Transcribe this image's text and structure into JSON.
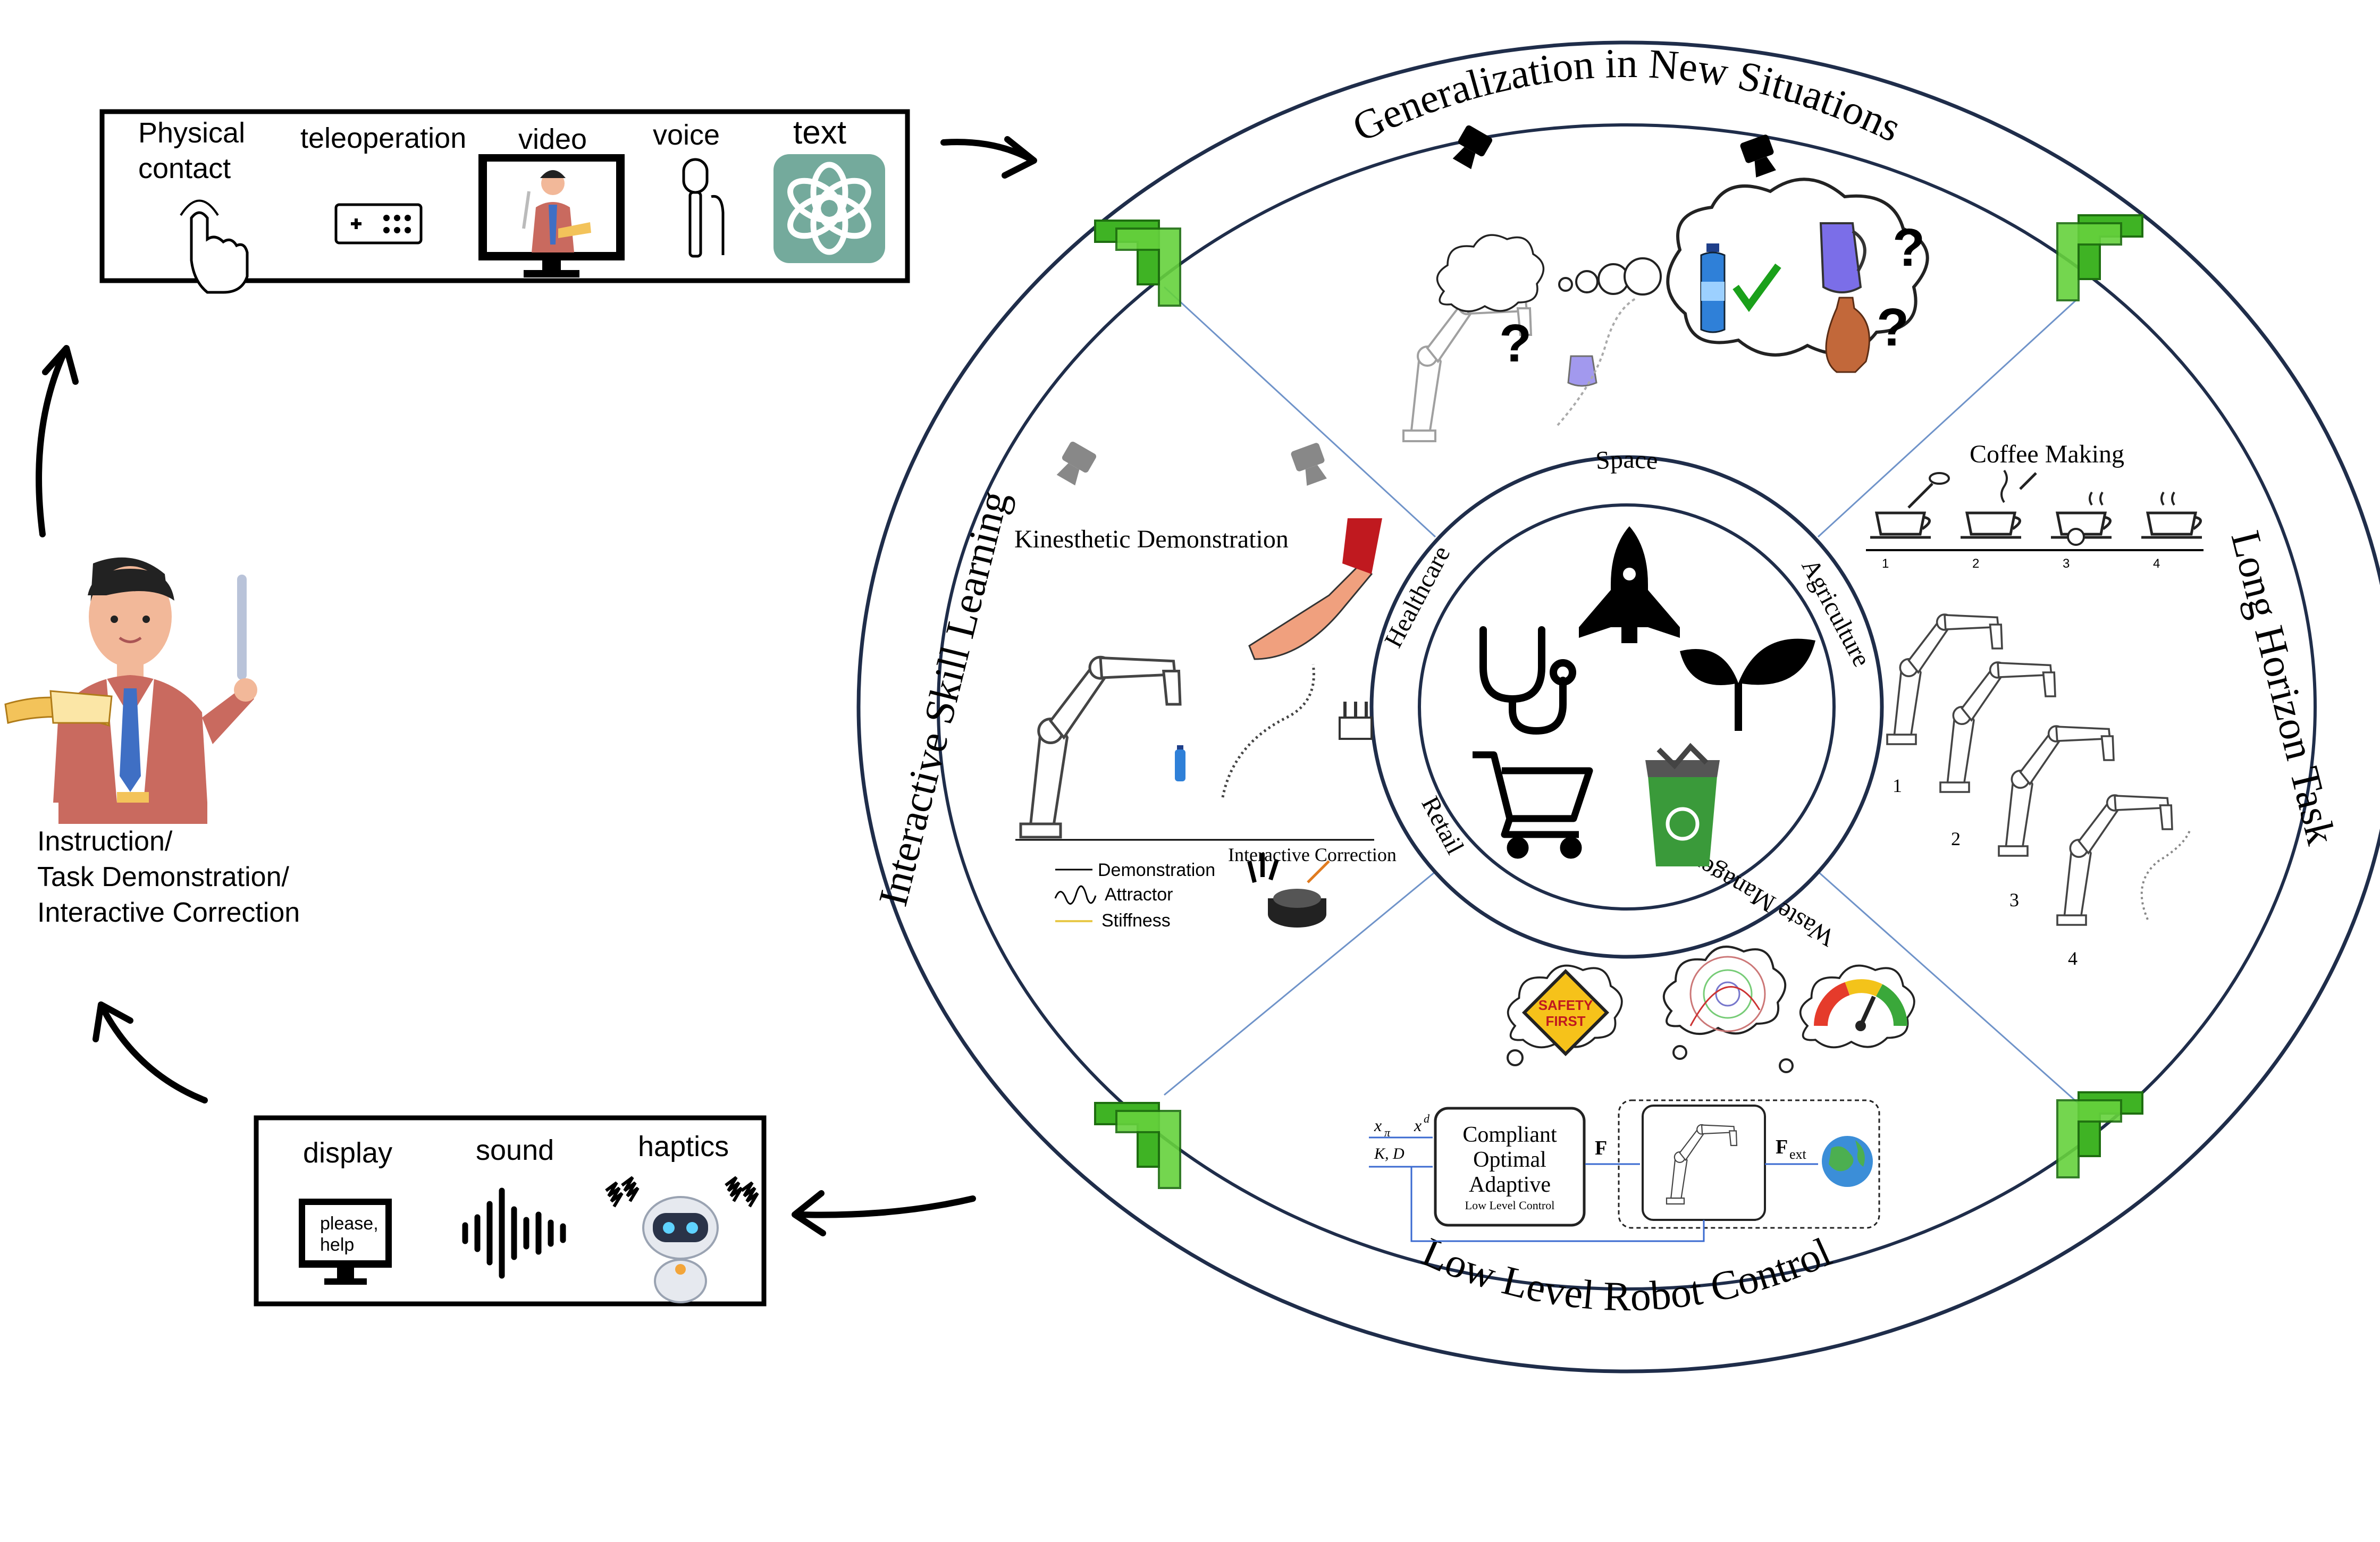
{
  "input_box": {
    "items": [
      {
        "label_line1": "Physical",
        "label_line2": "contact",
        "icon": "pointing-hand-icon"
      },
      {
        "label_line1": "teleoperation",
        "icon": "gamepad-icon"
      },
      {
        "label_line1": "video",
        "icon": "monitor-teacher-icon"
      },
      {
        "label_line1": "voice",
        "icon": "microphone-icon"
      },
      {
        "label_line1": "text",
        "icon": "chatgpt-logo-icon"
      }
    ]
  },
  "output_box": {
    "items": [
      {
        "label": "display",
        "icon": "monitor-icon",
        "screen_line1": "please,",
        "screen_line2": "help"
      },
      {
        "label": "sound",
        "icon": "sound-wave-icon"
      },
      {
        "label": "haptics",
        "icon": "vibrating-robot-icon"
      }
    ]
  },
  "human": {
    "line1": "Instruction/",
    "line2": "Task Demonstration/",
    "line3": "Interactive Correction"
  },
  "outer_ring": {
    "top": "Generalization in New Situations",
    "right": "Long Horizon Task",
    "bottom": "Low Level Robot Control",
    "left": "Interactive Skill Learning"
  },
  "inner_ring": {
    "top": "Space",
    "right": "Agriculture",
    "bottom_right": "Waste Management",
    "bottom_left": "Retail",
    "left": "Healthcare"
  },
  "panels": {
    "kinesthetic": {
      "title": "Kinesthetic Demonstration",
      "correction": "Interactive Correction",
      "legend": [
        "Demonstration",
        "Attractor",
        "Stiffness"
      ]
    },
    "coffee": {
      "title": "Coffee Making",
      "steps": [
        "1",
        "2",
        "3",
        "4"
      ],
      "robots": [
        "1",
        "2",
        "3",
        "4"
      ]
    },
    "control": {
      "box_line1": "Compliant",
      "box_line2": "Optimal",
      "box_line3": "Adaptive",
      "box_line4": "Low Level Control",
      "in1": "x",
      "in1_sub": "π",
      "in2": "x",
      "in2_sup": "d",
      "in3": "K, D",
      "force": "F",
      "fext": "F",
      "fext_sub": "ext",
      "safety_line1": "SAFETY",
      "safety_line2": "FIRST"
    },
    "generalization": {
      "question": "?"
    }
  },
  "colors": {
    "ring": "#1f2d4a",
    "divider": "#6f93c9",
    "chevron": "#3fb324",
    "chatgpt": "#74aa9c",
    "recycle": "#3a9a3a"
  }
}
